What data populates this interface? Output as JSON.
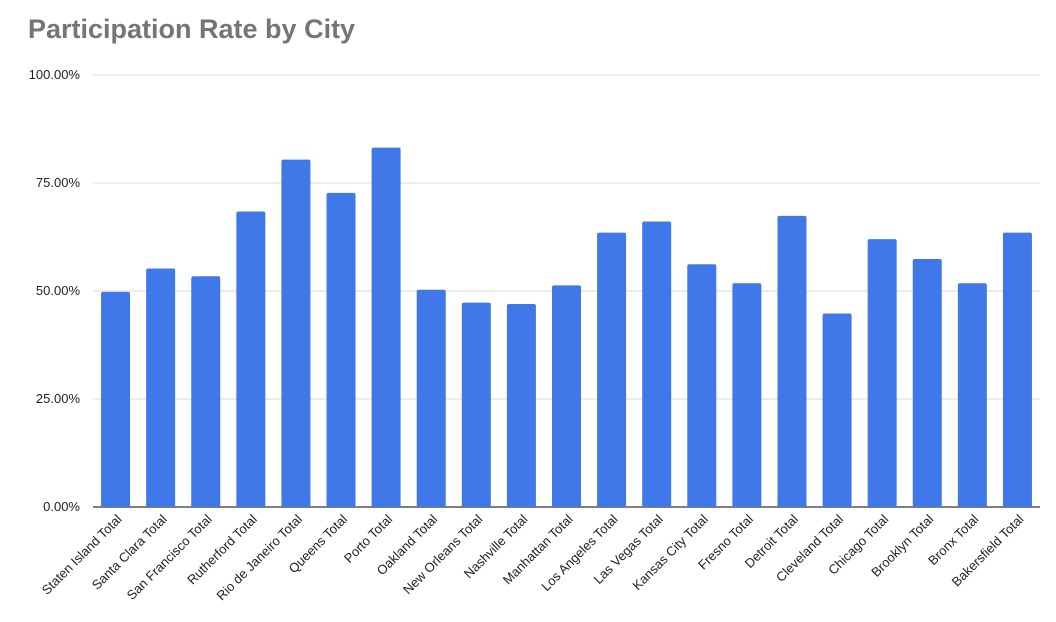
{
  "chart_data": {
    "type": "bar",
    "title": "Participation Rate by City",
    "xlabel": "",
    "ylabel": "",
    "ylim": [
      0,
      100
    ],
    "y_ticks": [
      "0.00%",
      "25.00%",
      "50.00%",
      "75.00%",
      "100.00%"
    ],
    "y_tick_values": [
      0,
      25,
      50,
      75,
      100
    ],
    "grid": true,
    "legend": "none",
    "bar_color": "#4078EA",
    "categories": [
      "Staten Island Total",
      "Santa Clara Total",
      "San Francisco Total",
      "Rutherford Total",
      "Rio de Janeiro Total",
      "Queens Total",
      "Porto Total",
      "Oakland Total",
      "New Orleans Total",
      "Nashville Total",
      "Manhattan Total",
      "Los Angeles Total",
      "Las Vegas Total",
      "Kansas City Total",
      "Fresno Total",
      "Detroit Total",
      "Cleveland Total",
      "Chicago Total",
      "Brooklyn Total",
      "Bronx Total",
      "Bakersfield Total"
    ],
    "values": [
      49.8,
      55.2,
      53.4,
      68.4,
      80.4,
      72.7,
      83.2,
      50.3,
      47.3,
      47.0,
      51.3,
      63.5,
      66.1,
      56.2,
      51.8,
      67.4,
      44.8,
      62.0,
      57.4,
      51.8,
      63.5
    ]
  }
}
